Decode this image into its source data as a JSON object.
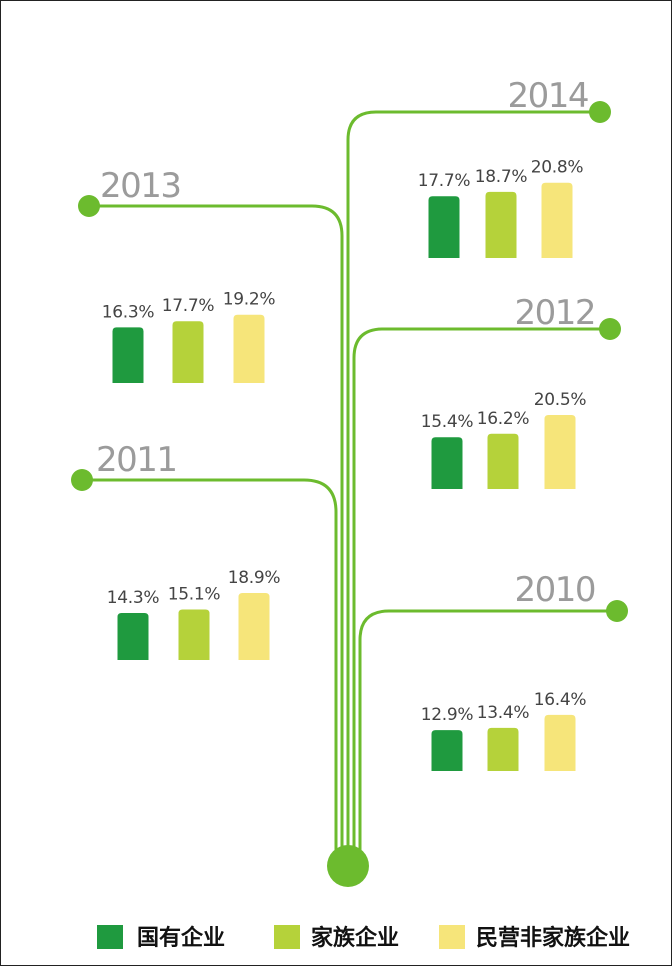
{
  "chart_data": {
    "type": "bar",
    "categories": [
      "国有企业",
      "家族企业",
      "民营非家族企业"
    ],
    "colors": [
      "#1f9a3f",
      "#b5d23a",
      "#f6e57a"
    ],
    "series": [
      {
        "name": "2014",
        "values": [
          17.7,
          18.7,
          20.8
        ],
        "labels": [
          "17.7%",
          "18.7%",
          "20.8%"
        ]
      },
      {
        "name": "2013",
        "values": [
          16.3,
          17.7,
          19.2
        ],
        "labels": [
          "16.3%",
          "17.7%",
          "19.2%"
        ]
      },
      {
        "name": "2012",
        "values": [
          15.4,
          16.2,
          20.5
        ],
        "labels": [
          "15.4%",
          "16.2%",
          "20.5%"
        ]
      },
      {
        "name": "2011",
        "values": [
          14.3,
          15.1,
          18.9
        ],
        "labels": [
          "14.3%",
          "15.1%",
          "18.9%"
        ]
      },
      {
        "name": "2010",
        "values": [
          12.9,
          13.4,
          16.4
        ],
        "labels": [
          "12.9%",
          "13.4%",
          "16.4%"
        ]
      }
    ],
    "branch_color": "#6cbb2e",
    "year_color": "#9b9b9b"
  },
  "legend": [
    {
      "label": "国有企业",
      "color": "#1f9a3f"
    },
    {
      "label": "家族企业",
      "color": "#b5d23a"
    },
    {
      "label": "民营非家族企业",
      "color": "#f6e57a"
    }
  ]
}
